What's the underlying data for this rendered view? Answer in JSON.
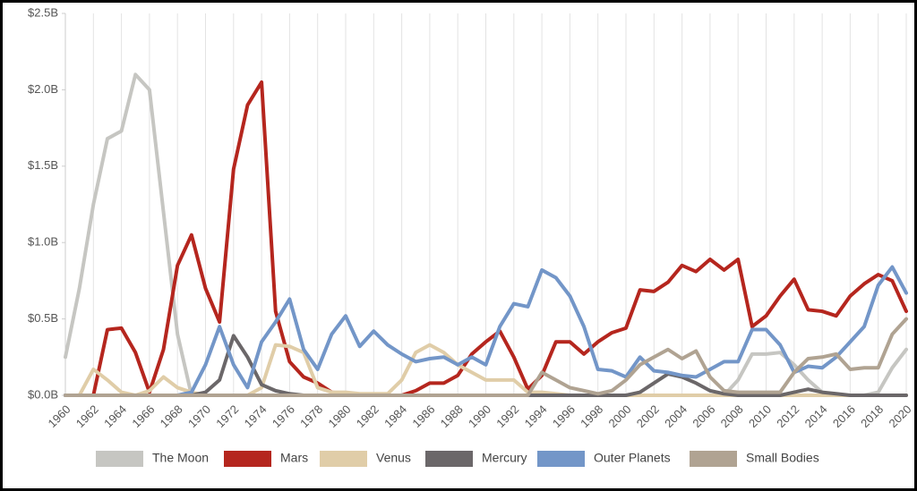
{
  "chart_data": {
    "type": "line",
    "x": [
      1960,
      1961,
      1962,
      1963,
      1964,
      1965,
      1966,
      1967,
      1968,
      1969,
      1970,
      1971,
      1972,
      1973,
      1974,
      1975,
      1976,
      1977,
      1978,
      1979,
      1980,
      1981,
      1982,
      1983,
      1984,
      1985,
      1986,
      1987,
      1988,
      1989,
      1990,
      1991,
      1992,
      1993,
      1994,
      1995,
      1996,
      1997,
      1998,
      1999,
      2000,
      2001,
      2002,
      2003,
      2004,
      2005,
      2006,
      2007,
      2008,
      2009,
      2010,
      2011,
      2012,
      2013,
      2014,
      2015,
      2016,
      2017,
      2018,
      2019,
      2020
    ],
    "xlim": [
      1960,
      2020
    ],
    "xticks": [
      1960,
      1962,
      1964,
      1966,
      1968,
      1970,
      1972,
      1974,
      1976,
      1978,
      1980,
      1982,
      1984,
      1986,
      1988,
      1990,
      1992,
      1994,
      1996,
      1998,
      2000,
      2002,
      2004,
      2006,
      2008,
      2010,
      2012,
      2014,
      2016,
      2018,
      2020
    ],
    "ylim": [
      0,
      2.5
    ],
    "yticks": [
      {
        "value": 0,
        "label": "$0.0B"
      },
      {
        "value": 0.5,
        "label": "$0.5B"
      },
      {
        "value": 1,
        "label": "$1.0B"
      },
      {
        "value": 1.5,
        "label": "$1.5B"
      },
      {
        "value": 2,
        "label": "$2.0B"
      },
      {
        "value": 2.5,
        "label": "$2.5B"
      }
    ],
    "grid": "x",
    "legend": "bottom",
    "series": [
      {
        "name": "The Moon",
        "color": "#c6c6c2",
        "values": [
          0.25,
          0.7,
          1.25,
          1.68,
          1.73,
          2.1,
          2.0,
          1.2,
          0.4,
          0,
          0,
          0,
          0,
          0,
          0,
          0,
          0,
          0,
          0,
          0,
          0,
          0,
          0,
          0,
          0,
          0,
          0,
          0,
          0,
          0,
          0,
          0,
          0,
          0,
          0,
          0,
          0,
          0,
          0,
          0,
          0,
          0,
          0,
          0,
          0,
          0,
          0,
          0,
          0.1,
          0.27,
          0.27,
          0.28,
          0.2,
          0.1,
          0.02,
          0,
          0,
          0,
          0.02,
          0.18,
          0.3
        ]
      },
      {
        "name": "Mars",
        "color": "#b5261e",
        "values": [
          0,
          0,
          0,
          0.43,
          0.44,
          0.28,
          0.02,
          0.3,
          0.85,
          1.05,
          0.7,
          0.48,
          1.48,
          1.9,
          2.05,
          0.55,
          0.22,
          0.12,
          0.08,
          0.02,
          0.01,
          0,
          0,
          0,
          0,
          0.03,
          0.08,
          0.08,
          0.13,
          0.27,
          0.35,
          0.42,
          0.25,
          0.04,
          0.13,
          0.35,
          0.35,
          0.27,
          0.35,
          0.41,
          0.44,
          0.69,
          0.68,
          0.74,
          0.85,
          0.81,
          0.89,
          0.82,
          0.89,
          0.45,
          0.52,
          0.65,
          0.76,
          0.56,
          0.55,
          0.52,
          0.65,
          0.73,
          0.79,
          0.75,
          0.55
        ]
      },
      {
        "name": "Venus",
        "color": "#e0cda8",
        "values": [
          0,
          0,
          0.17,
          0.1,
          0.02,
          0,
          0.03,
          0.12,
          0.05,
          0.02,
          0,
          0,
          0,
          0,
          0.05,
          0.33,
          0.32,
          0.28,
          0.05,
          0.02,
          0.02,
          0.01,
          0.01,
          0.01,
          0.1,
          0.28,
          0.33,
          0.28,
          0.2,
          0.15,
          0.1,
          0.1,
          0.1,
          0.02,
          0.02,
          0.01,
          0,
          0,
          0,
          0,
          0,
          0,
          0,
          0,
          0,
          0,
          0,
          0,
          0,
          0,
          0,
          0,
          0,
          0,
          0,
          0,
          0,
          0,
          0,
          0,
          0
        ]
      },
      {
        "name": "Mercury",
        "color": "#6b6769",
        "values": [
          0,
          0,
          0,
          0,
          0,
          0,
          0,
          0,
          0,
          0,
          0.02,
          0.1,
          0.39,
          0.25,
          0.07,
          0.03,
          0.01,
          0,
          0,
          0,
          0,
          0,
          0,
          0,
          0,
          0,
          0,
          0,
          0,
          0,
          0,
          0,
          0,
          0,
          0,
          0,
          0,
          0,
          0,
          0,
          0,
          0.02,
          0.08,
          0.14,
          0.12,
          0.08,
          0.03,
          0.01,
          0,
          0,
          0,
          0,
          0.02,
          0.04,
          0.02,
          0.01,
          0,
          0,
          0,
          0,
          0
        ]
      },
      {
        "name": "Outer Planets",
        "color": "#7396c8",
        "values": [
          0,
          0,
          0,
          0,
          0,
          0,
          0,
          0,
          0,
          0.02,
          0.2,
          0.45,
          0.2,
          0.05,
          0.35,
          0.48,
          0.63,
          0.3,
          0.17,
          0.4,
          0.52,
          0.32,
          0.42,
          0.33,
          0.27,
          0.22,
          0.24,
          0.25,
          0.2,
          0.25,
          0.2,
          0.45,
          0.6,
          0.58,
          0.82,
          0.77,
          0.65,
          0.45,
          0.17,
          0.16,
          0.12,
          0.25,
          0.16,
          0.15,
          0.13,
          0.12,
          0.17,
          0.22,
          0.22,
          0.43,
          0.43,
          0.33,
          0.15,
          0.19,
          0.18,
          0.25,
          0.35,
          0.45,
          0.72,
          0.84,
          0.67
        ]
      },
      {
        "name": "Small Bodies",
        "color": "#b0a392",
        "values": [
          0,
          0,
          0,
          0,
          0,
          0,
          0,
          0,
          0,
          0,
          0,
          0,
          0,
          0,
          0,
          0,
          0,
          0,
          0,
          0,
          0,
          0,
          0,
          0,
          0,
          0,
          0,
          0,
          0,
          0,
          0,
          0,
          0,
          0,
          0.15,
          0.1,
          0.05,
          0.03,
          0.01,
          0.03,
          0.1,
          0.2,
          0.25,
          0.3,
          0.24,
          0.29,
          0.12,
          0.03,
          0.02,
          0.02,
          0.02,
          0.02,
          0.15,
          0.24,
          0.25,
          0.27,
          0.17,
          0.18,
          0.18,
          0.4,
          0.5
        ]
      }
    ]
  }
}
